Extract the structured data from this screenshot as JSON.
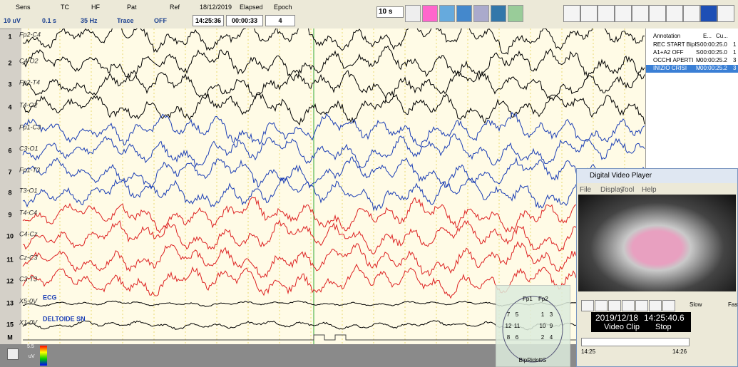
{
  "toolbar": {
    "headers": [
      "Sens",
      "TC",
      "HF",
      "Pat",
      "Ref",
      "18/12/2019",
      "Elapsed",
      "Epoch"
    ],
    "values": [
      "10 uV",
      "0.1 s",
      "35 Hz",
      "Trace",
      "OFF",
      "14:25:36",
      "00:00:33",
      "4"
    ],
    "epoch_length": "10 s"
  },
  "channels": [
    {
      "number": "1",
      "label": "Fp2-C4"
    },
    {
      "number": "2",
      "label": "C4-O2"
    },
    {
      "number": "3",
      "label": "Fp2-T4"
    },
    {
      "number": "4",
      "label": "T4-O2"
    },
    {
      "number": "5",
      "label": "Fp1-C3"
    },
    {
      "number": "6",
      "label": "C3-O1"
    },
    {
      "number": "7",
      "label": "Fp1-T3"
    },
    {
      "number": "8",
      "label": "T3-O1"
    },
    {
      "number": "9",
      "label": "T4-C4"
    },
    {
      "number": "10",
      "label": "C4-Cz"
    },
    {
      "number": "11",
      "label": "Cz-C3"
    },
    {
      "number": "12",
      "label": "C3-T3"
    },
    {
      "number": "13",
      "label": "X5-0V"
    },
    {
      "number": "15",
      "label": "X1-0V"
    },
    {
      "number": "M"
    }
  ],
  "trace_notes": [
    "ECG",
    "DELTOIDE SN"
  ],
  "annotation_panel": {
    "header": [
      "Annotation",
      "E...",
      "Cu..."
    ],
    "rows": [
      [
        "REC START BipR",
        "S",
        "00:00:25.0",
        "1"
      ],
      [
        "A1+A2 OFF",
        "S",
        "00:00:25.0",
        "1"
      ],
      [
        "OCCHI APERTI",
        "M",
        "00:00:25.2",
        "3"
      ],
      [
        "INIZIO CRISI",
        "M",
        "00:00:25.2",
        "3"
      ]
    ]
  },
  "video_player": {
    "title": "Digital Video Player",
    "menu": [
      "File",
      "Display",
      "Tool",
      "Help"
    ],
    "slow": "Slow",
    "fast": "Fast",
    "date": "2019/12/18",
    "time": "14:25:40.6",
    "clip": "Video Clip",
    "state": "Stop",
    "start": "14:25",
    "end": "14:26"
  },
  "head_map": {
    "left": "Fp1",
    "right": "Fp2",
    "montage": "BipRidottG",
    "rows": [
      [
        "7",
        "5",
        "1",
        "3"
      ],
      [
        "12",
        "11",
        "10",
        "9"
      ],
      [
        "8",
        "6",
        "2",
        "4"
      ]
    ]
  },
  "scale": {
    "max": "5.5",
    "unit": "uV"
  }
}
